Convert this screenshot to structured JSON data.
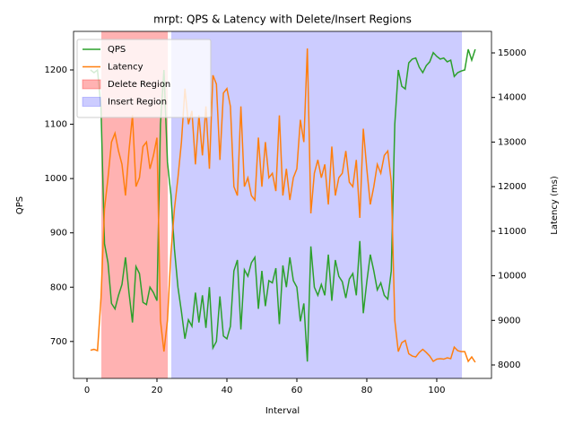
{
  "chart_data": {
    "type": "line",
    "title": "mrpt: QPS & Latency with Delete/Insert Regions",
    "x_label": "Interval",
    "y_label": "QPS",
    "y2_label": "Latency (ms)",
    "x": [
      1,
      2,
      3,
      4,
      5,
      6,
      7,
      8,
      9,
      10,
      11,
      12,
      13,
      14,
      15,
      16,
      17,
      18,
      19,
      20,
      21,
      22,
      23,
      24,
      25,
      26,
      27,
      28,
      29,
      30,
      31,
      32,
      33,
      34,
      35,
      36,
      37,
      38,
      39,
      40,
      41,
      42,
      43,
      44,
      45,
      46,
      47,
      48,
      49,
      50,
      51,
      52,
      53,
      54,
      55,
      56,
      57,
      58,
      59,
      60,
      61,
      62,
      63,
      64,
      65,
      66,
      67,
      68,
      69,
      70,
      71,
      72,
      73,
      74,
      75,
      76,
      77,
      78,
      79,
      80,
      81,
      82,
      83,
      84,
      85,
      86,
      87,
      88,
      89,
      90,
      91,
      92,
      93,
      94,
      95,
      96,
      97,
      98,
      99,
      100,
      101,
      102,
      103,
      104,
      105,
      106,
      107,
      108,
      109,
      110,
      111
    ],
    "series": [
      {
        "name": "QPS",
        "color": "#2ca02c",
        "axis": "y",
        "values": [
          1200,
          1195,
          1200,
          1130,
          880,
          845,
          770,
          760,
          785,
          805,
          855,
          790,
          735,
          838,
          825,
          772,
          768,
          800,
          790,
          775,
          1100,
          1200,
          1030,
          970,
          870,
          800,
          755,
          705,
          740,
          728,
          790,
          735,
          785,
          725,
          800,
          688,
          700,
          783,
          710,
          705,
          728,
          830,
          850,
          722,
          832,
          820,
          845,
          855,
          760,
          830,
          765,
          812,
          808,
          835,
          732,
          840,
          800,
          855,
          812,
          800,
          737,
          770,
          663,
          875,
          800,
          785,
          805,
          785,
          860,
          775,
          850,
          820,
          810,
          780,
          815,
          825,
          785,
          885,
          752,
          810,
          860,
          830,
          795,
          808,
          785,
          778,
          830,
          1100,
          1200,
          1170,
          1165,
          1213,
          1220,
          1222,
          1205,
          1195,
          1208,
          1215,
          1232,
          1225,
          1220,
          1222,
          1215,
          1218,
          1188,
          1195,
          1198,
          1200,
          1238,
          1218,
          1238
        ]
      },
      {
        "name": "Latency",
        "color": "#ff7f0e",
        "axis": "y2",
        "values": [
          8330,
          8350,
          8320,
          9500,
          11500,
          12200,
          13000,
          13200,
          12800,
          12500,
          11800,
          12800,
          13600,
          12000,
          12200,
          12900,
          13000,
          12400,
          12700,
          13100,
          9000,
          8300,
          9000,
          10500,
          11500,
          12200,
          13000,
          14200,
          13400,
          13700,
          12500,
          13600,
          12700,
          13800,
          12400,
          14500,
          14300,
          12600,
          14100,
          14200,
          13800,
          12000,
          11800,
          13800,
          12000,
          12200,
          11800,
          11700,
          13100,
          12000,
          13000,
          12200,
          12300,
          11900,
          13600,
          11800,
          12400,
          11700,
          12200,
          12400,
          13500,
          13000,
          15100,
          11400,
          12300,
          12600,
          12200,
          12500,
          11600,
          12900,
          11800,
          12200,
          12300,
          12800,
          12100,
          12000,
          12600,
          11300,
          13300,
          12400,
          11600,
          12000,
          12500,
          12300,
          12700,
          12800,
          12100,
          9000,
          8300,
          8500,
          8550,
          8250,
          8200,
          8180,
          8280,
          8350,
          8280,
          8200,
          8080,
          8130,
          8140,
          8130,
          8160,
          8140,
          8400,
          8320,
          8300,
          8300,
          8080,
          8180,
          8060
        ]
      }
    ],
    "regions": [
      {
        "name": "Delete Region",
        "color": "#ff0000",
        "alpha": 0.3,
        "start": 4.1,
        "end": 23.1
      },
      {
        "name": "Insert Region",
        "color": "#0000ff",
        "alpha": 0.2,
        "start": 24.1,
        "end": 107.2
      }
    ],
    "xlim": [
      -3.85,
      115.65
    ],
    "xticks": [
      0,
      20,
      40,
      60,
      80,
      100
    ],
    "ylim": [
      632,
      1271
    ],
    "yticks": [
      700,
      800,
      900,
      1000,
      1100,
      1200
    ],
    "y2lim": [
      7698,
      15483
    ],
    "y2ticks": [
      8000,
      9000,
      10000,
      11000,
      12000,
      13000,
      14000,
      15000
    ],
    "legend": "upper left"
  }
}
